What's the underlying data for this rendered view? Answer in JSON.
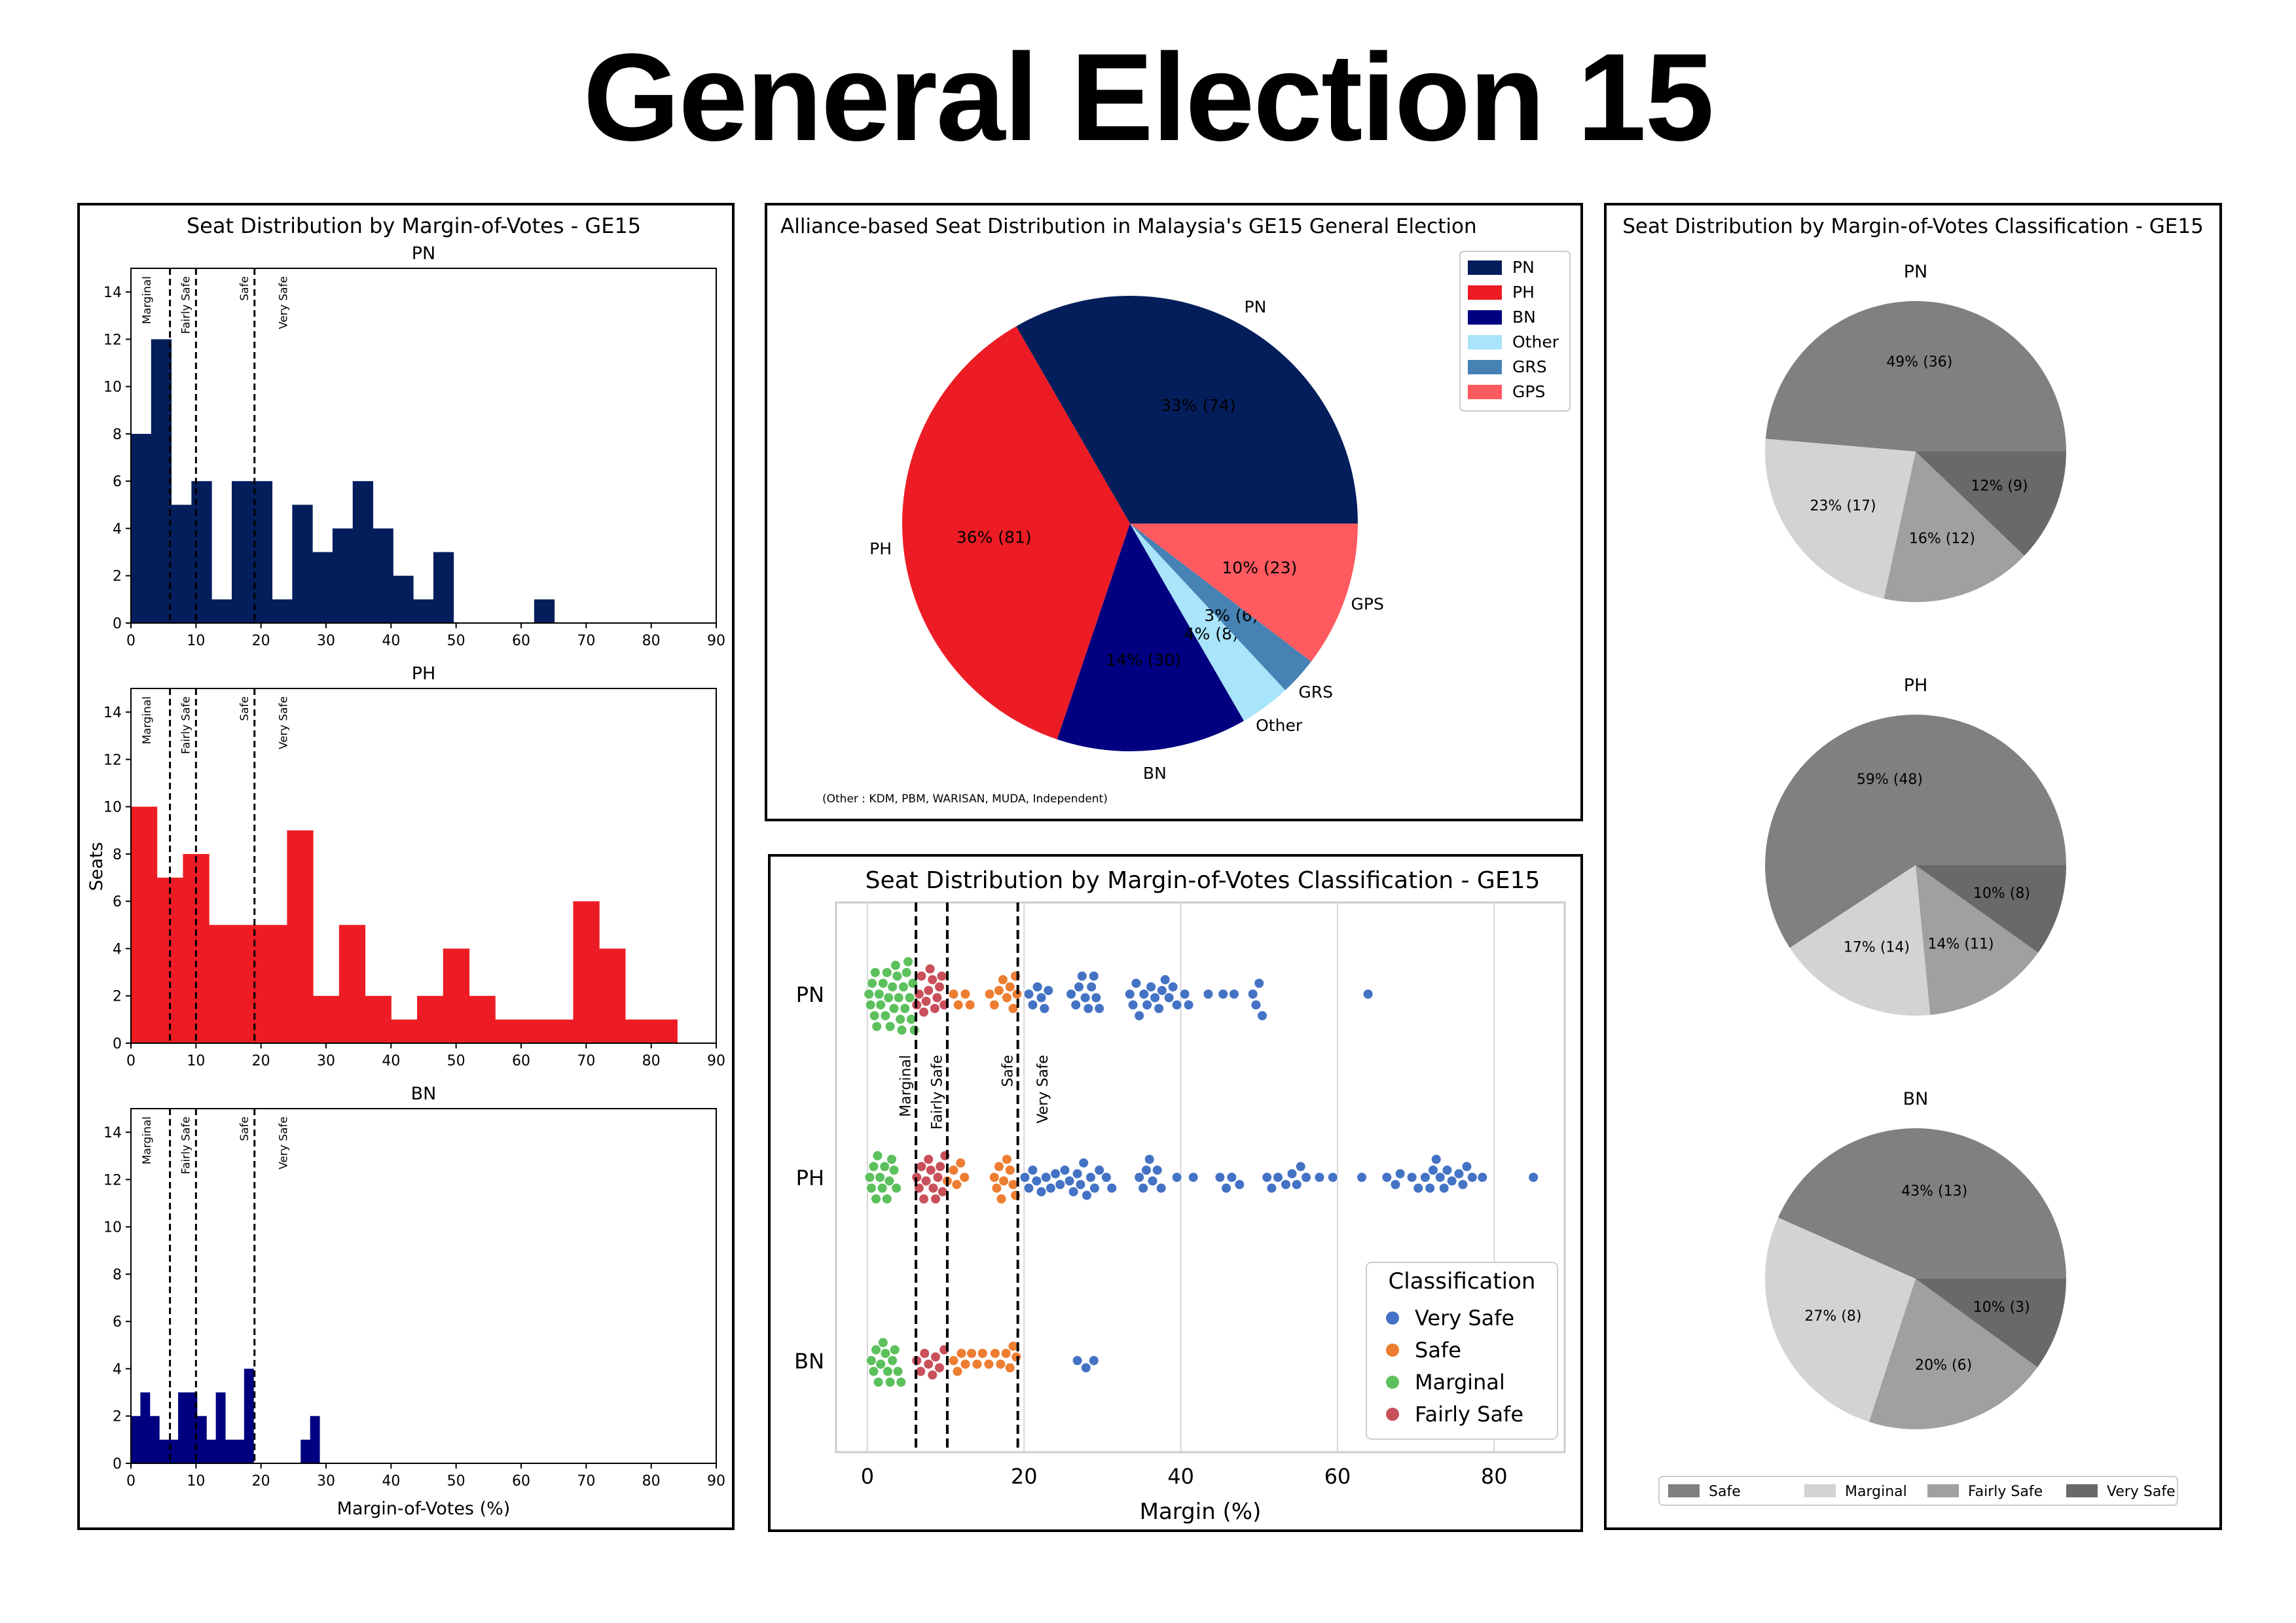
{
  "page_title": "General Election 15",
  "chart_data": [
    {
      "type": "histogram",
      "title": "Seat Distribution by Margin-of-Votes - GE15",
      "xlabel": "Margin-of-Votes (%)",
      "ylabel": "Seats",
      "xlim": [
        0,
        90
      ],
      "ylim": [
        0,
        15
      ],
      "xticks": [
        0,
        10,
        20,
        30,
        40,
        50,
        60,
        70,
        80,
        90
      ],
      "yticks": [
        0,
        2,
        4,
        6,
        8,
        10,
        12,
        14
      ],
      "threshold_lines": [
        {
          "x": 6,
          "label": "Marginal",
          "label_x": 2.5
        },
        {
          "x": 10,
          "label": "Fairly Safe",
          "label_x": 8.5
        },
        {
          "x": 19,
          "label": "Safe",
          "label_x": 17.5
        },
        {
          "x": 19,
          "label": "Very Safe",
          "label_x": 23.5
        }
      ],
      "series": [
        {
          "name": "PN",
          "color": "#041E5C",
          "bin_width": 3.1,
          "bins": [
            [
              0,
              8
            ],
            [
              3.1,
              12
            ],
            [
              6.2,
              5
            ],
            [
              9.3,
              6
            ],
            [
              12.4,
              1
            ],
            [
              15.5,
              6
            ],
            [
              18.6,
              6
            ],
            [
              21.7,
              1
            ],
            [
              24.8,
              5
            ],
            [
              27.9,
              3
            ],
            [
              31,
              4
            ],
            [
              34.1,
              6
            ],
            [
              37.2,
              4
            ],
            [
              40.3,
              2
            ],
            [
              43.4,
              1
            ],
            [
              46.5,
              3
            ],
            [
              49.6,
              0
            ],
            [
              52.7,
              0
            ],
            [
              55.8,
              0
            ],
            [
              58.9,
              0
            ],
            [
              62,
              1
            ]
          ]
        },
        {
          "name": "PH",
          "color": "#ED1C24",
          "bin_width": 4.0,
          "bins": [
            [
              0,
              10
            ],
            [
              4,
              7
            ],
            [
              8,
              8
            ],
            [
              12,
              5
            ],
            [
              16,
              5
            ],
            [
              20,
              5
            ],
            [
              24,
              9
            ],
            [
              28,
              2
            ],
            [
              32,
              5
            ],
            [
              36,
              2
            ],
            [
              40,
              1
            ],
            [
              44,
              2
            ],
            [
              48,
              4
            ],
            [
              52,
              2
            ],
            [
              56,
              1
            ],
            [
              60,
              1
            ],
            [
              64,
              1
            ],
            [
              68,
              6
            ],
            [
              72,
              4
            ],
            [
              76,
              1
            ],
            [
              80,
              1
            ]
          ]
        },
        {
          "name": "BN",
          "color": "#000080",
          "bin_width": 1.45,
          "bins": [
            [
              0,
              2
            ],
            [
              1.45,
              3
            ],
            [
              2.9,
              2
            ],
            [
              4.35,
              1
            ],
            [
              5.8,
              1
            ],
            [
              7.25,
              3
            ],
            [
              8.7,
              3
            ],
            [
              10.15,
              2
            ],
            [
              11.6,
              1
            ],
            [
              13.05,
              3
            ],
            [
              14.5,
              1
            ],
            [
              15.95,
              1
            ],
            [
              17.4,
              4
            ],
            [
              18.85,
              0
            ],
            [
              20.3,
              0
            ],
            [
              21.75,
              0
            ],
            [
              23.2,
              0
            ],
            [
              24.65,
              0
            ],
            [
              26.1,
              1
            ],
            [
              27.55,
              2
            ]
          ]
        }
      ]
    },
    {
      "type": "pie",
      "title": "Alliance-based Seat Distribution in Malaysia's GE15 General Election",
      "footnote": "(Other : KDM, PBM, WARISAN, MUDA, Independent)",
      "legend": "top-right",
      "slices": [
        {
          "label": "PN",
          "value": 74,
          "pct": "33% (74)",
          "color": "#041E5C"
        },
        {
          "label": "PH",
          "value": 81,
          "pct": "36% (81)",
          "color": "#ED1C24"
        },
        {
          "label": "BN",
          "value": 30,
          "pct": "14% (30)",
          "color": "#000080"
        },
        {
          "label": "Other",
          "value": 8,
          "pct": "4% (8)",
          "color": "#A8E4FA"
        },
        {
          "label": "GRS",
          "value": 6,
          "pct": "3% (6)",
          "color": "#4682B4"
        },
        {
          "label": "GPS",
          "value": 23,
          "pct": "10% (23)",
          "color": "#FF5A5F"
        }
      ]
    },
    {
      "type": "scatter",
      "title": "Seat Distribution by Margin-of-Votes Classification - GE15",
      "xlabel": "Margin (%)",
      "xlim": [
        -4,
        89
      ],
      "xticks": [
        0,
        20,
        40,
        60,
        80
      ],
      "categories": [
        "PN",
        "PH",
        "BN"
      ],
      "legend_title": "Classification",
      "legend": "bottom-right",
      "classes": [
        {
          "name": "Very Safe",
          "color": "#4472C4"
        },
        {
          "name": "Safe",
          "color": "#ED7D31"
        },
        {
          "name": "Marginal",
          "color": "#5CC05C"
        },
        {
          "name": "Fairly Safe",
          "color": "#C9505A"
        }
      ],
      "threshold_lines": [
        {
          "x": 6.2,
          "label": "Marginal",
          "label_x": 5
        },
        {
          "x": 10.2,
          "label": "Fairly Safe",
          "label_x": 9
        },
        {
          "x": 19.2,
          "label": "Safe",
          "label_x": 18
        },
        {
          "x": 19.2,
          "label": "Very Safe",
          "label_x": 22.5
        }
      ],
      "points": {
        "PN": [
          0.2,
          0.4,
          0.6,
          0.9,
          1,
          1.2,
          1.5,
          1.7,
          2,
          2.3,
          2.5,
          2.7,
          2.9,
          3.2,
          3.4,
          3.6,
          3.8,
          4,
          4.2,
          4.4,
          4.6,
          4.8,
          5,
          5.2,
          5.4,
          5.6,
          5.8,
          6,
          6.3,
          6.6,
          6.9,
          7.2,
          7.5,
          7.8,
          8,
          8.3,
          8.6,
          8.9,
          9.2,
          9.5,
          9.8,
          11,
          11.6,
          12.5,
          13.1,
          15.6,
          16.2,
          16.8,
          17.3,
          17.8,
          18.2,
          18.6,
          18.9,
          19.1,
          20.6,
          21.1,
          21.7,
          22.2,
          22.6,
          23.1,
          26,
          26.6,
          27,
          27.4,
          27.8,
          28.2,
          28.6,
          28.9,
          29.2,
          29.6,
          33.5,
          33.9,
          34.3,
          34.7,
          35.3,
          35.7,
          36.2,
          36.7,
          37.2,
          37.6,
          38,
          38.5,
          39,
          39.5,
          40.5,
          41,
          43.5,
          45.4,
          46.8,
          49.2,
          49.6,
          50,
          50.4,
          63.9
        ],
        "PH": [
          0.3,
          0.5,
          0.8,
          1.1,
          1.3,
          1.6,
          1.9,
          2.2,
          2.5,
          2.8,
          3.1,
          3.4,
          3.7,
          6.3,
          6.6,
          6.9,
          7.2,
          7.5,
          7.8,
          8.1,
          8.4,
          8.7,
          9,
          9.3,
          9.6,
          9.9,
          10.2,
          11,
          11.4,
          11.9,
          12.4,
          16.2,
          16.5,
          16.8,
          17.1,
          17.4,
          17.8,
          18.2,
          18.6,
          18.9,
          20.1,
          20.6,
          21.1,
          21.6,
          22.2,
          22.8,
          23.4,
          24,
          24.6,
          25.2,
          25.8,
          26.3,
          26.8,
          27.2,
          27.6,
          28,
          28.5,
          29,
          29.6,
          30.5,
          31.2,
          34.7,
          35.2,
          35.6,
          36,
          36.4,
          37,
          37.5,
          39.5,
          41.6,
          45,
          45.8,
          46.5,
          47.5,
          51,
          51.6,
          52.4,
          53.4,
          54.2,
          54.8,
          55.3,
          56,
          57.7,
          59.4,
          63.1,
          66.3,
          67.4,
          68,
          69.5,
          70.3,
          71.2,
          71.8,
          72.2,
          72.6,
          73.1,
          73.6,
          74,
          74.6,
          75.5,
          76,
          76.5,
          77.2,
          78.5,
          85
        ],
        "BN": [
          0.5,
          0.8,
          1.1,
          1.4,
          1.7,
          2,
          2.3,
          2.6,
          2.9,
          3.2,
          3.5,
          3.9,
          4.3,
          6.3,
          6.8,
          7.3,
          7.8,
          8.3,
          8.7,
          9.2,
          9.8,
          11,
          11.5,
          12,
          12.5,
          13.3,
          14,
          14.7,
          15.5,
          16.3,
          17,
          17.7,
          18.2,
          18.6,
          19,
          26.8,
          27.9,
          28.9
        ]
      }
    },
    {
      "type": "pie",
      "title": "Seat Distribution by Margin-of-Votes Classification - GE15",
      "legend": "bottom",
      "classes": [
        {
          "name": "Safe",
          "color": "#808080"
        },
        {
          "name": "Marginal",
          "color": "#D3D3D3"
        },
        {
          "name": "Fairly Safe",
          "color": "#A0A0A0"
        },
        {
          "name": "Very Safe",
          "color": "#696969"
        }
      ],
      "series": [
        {
          "name": "PN",
          "values": [
            36,
            17,
            12,
            9
          ],
          "labels": [
            "49% (36)",
            "23% (17)",
            "16% (12)",
            "12% (9)"
          ]
        },
        {
          "name": "PH",
          "values": [
            48,
            14,
            11,
            8
          ],
          "labels": [
            "59% (48)",
            "17% (14)",
            "14% (11)",
            "10% (8)"
          ]
        },
        {
          "name": "BN",
          "values": [
            13,
            8,
            6,
            3
          ],
          "labels": [
            "43% (13)",
            "27% (8)",
            "20% (6)",
            "10% (3)"
          ]
        }
      ]
    }
  ]
}
